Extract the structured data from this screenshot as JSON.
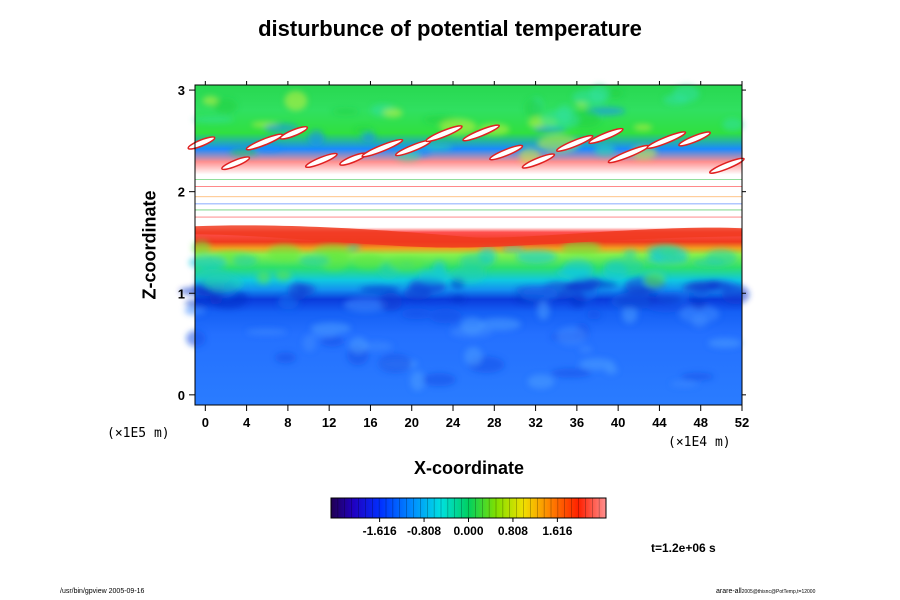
{
  "chart_data": {
    "type": "heatmap",
    "title": "disturbunce of potential temperature",
    "xlabel": "X-coordinate",
    "ylabel": "Z-coordinate",
    "x_unit_label": "(×1E4 m)",
    "y_unit_label": "(×1E5 m)",
    "xlim": [
      -1,
      52
    ],
    "ylim": [
      -0.1,
      3.05
    ],
    "x_ticks": [
      0,
      4,
      8,
      12,
      16,
      20,
      24,
      28,
      32,
      36,
      40,
      44,
      48,
      52
    ],
    "x_tick_labels": [
      "0",
      "4",
      "8",
      "12",
      "16",
      "20",
      "24",
      "28",
      "32",
      "36",
      "40",
      "44",
      "48",
      "52"
    ],
    "y_ticks": [
      0,
      1,
      2,
      3
    ],
    "y_tick_labels": [
      "0",
      "1",
      "2",
      "3"
    ],
    "colorbar": {
      "range": [
        -2.5,
        2.5
      ],
      "ticks": [
        -1.616,
        -0.808,
        0.0,
        0.808,
        1.616
      ],
      "tick_labels": [
        "-1.616",
        "-0.808",
        "0.000",
        "0.808",
        "1.616"
      ],
      "colormap": "rainbow (purple-blue-cyan-green-yellow-red-pink)",
      "saturated_color": "#ffffff"
    },
    "approx_layers": [
      {
        "z_range": [
          0,
          0.95
        ],
        "value": -1.2,
        "color": "#1e64ff"
      },
      {
        "z_range": [
          0.95,
          1.1
        ],
        "value": -1.7,
        "color": "#0a3cdc"
      },
      {
        "z_range": [
          1.1,
          1.4
        ],
        "value": 0.2,
        "color": "#2fe06a"
      },
      {
        "z_range": [
          1.45,
          1.65
        ],
        "value": 1.7,
        "color": "#f03a1e"
      },
      {
        "z_range": [
          1.65,
          2.35
        ],
        "value": "out of range",
        "color": "#ffffff"
      },
      {
        "z_range": [
          2.35,
          3.0
        ],
        "value": 0.5,
        "color": "#30e040"
      }
    ],
    "grid": false,
    "legend": "colorbar bottom-center"
  },
  "annotations": {
    "time_label": "t=1.2e+06 s",
    "footer_left": "/usr/bin/gpview 2005-09-16",
    "footer_right_main": "arare-all",
    "footer_right_small": "2005@thisnc@PotTemp,t=12000"
  },
  "colors": {
    "background": "#ffffff",
    "axes": "#000000"
  }
}
